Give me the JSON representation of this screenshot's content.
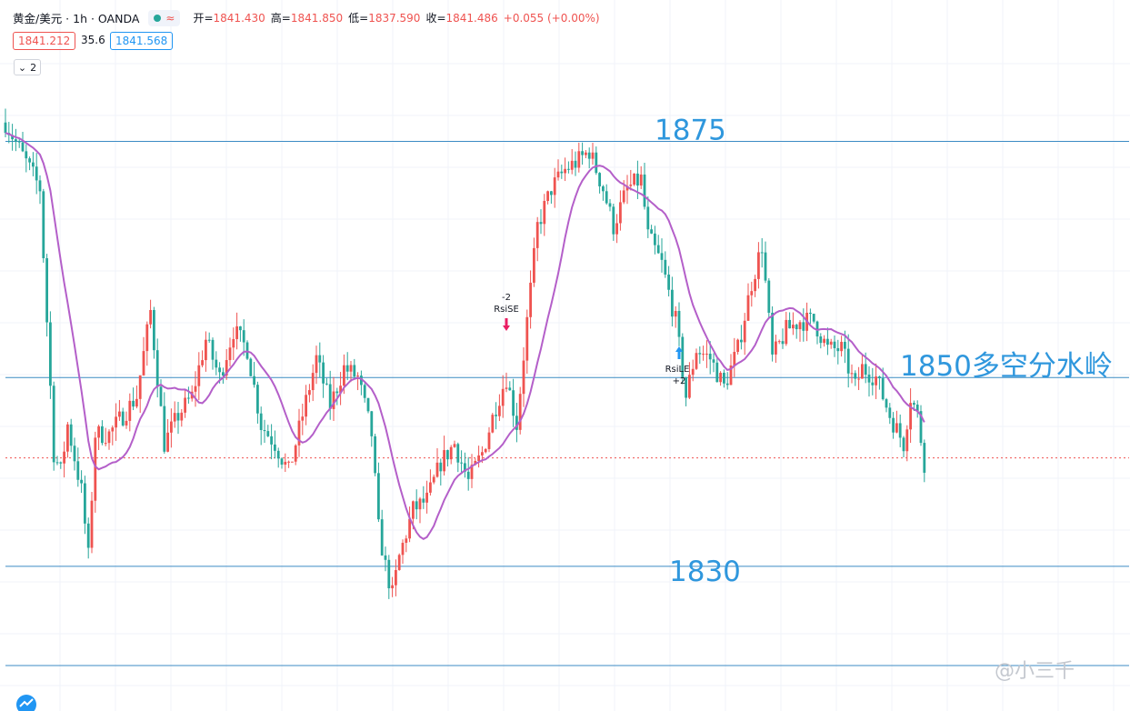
{
  "legend": {
    "symbol": "黄金/美元 · 1h · OANDA",
    "open_label": "开=",
    "open": "1841.430",
    "high_label": "高=",
    "high": "1841.850",
    "low_label": "低=",
    "low": "1837.590",
    "close_label": "收=",
    "close": "1841.486",
    "change": "+0.055 (+0.00%)",
    "wave_icon": "≈"
  },
  "quote": {
    "bid": "1841.212",
    "spread": "35.6",
    "ask": "1841.568"
  },
  "collapse_button": {
    "count": "2"
  },
  "watermark": "@小三千",
  "colors": {
    "up": "#ef5350",
    "down": "#26a69a",
    "ma": "#b45fc9",
    "hline": "#3c8bc4",
    "annotation": "#2f97dd",
    "last_price_line": "#ef5350",
    "grid": "#f0f3fa"
  },
  "chart_data": {
    "type": "candlestick",
    "instrument": "黄金/美元",
    "timeframe": "1h",
    "ylim": [
      1819.5,
      1881.5
    ],
    "last_price": 1841.486,
    "annotations": [
      {
        "text": "1875",
        "price": 1875
      },
      {
        "text": "1850多空分水岭",
        "price": 1850
      },
      {
        "text": "1830",
        "price": 1830
      }
    ],
    "levels": [
      1875,
      1850,
      1830,
      1819.5
    ],
    "signals": [
      {
        "label": "-2",
        "name": "RsiSE",
        "direction": "sell",
        "bar_index": 145
      },
      {
        "label": "RsiLE",
        "qty": "+2",
        "direction": "buy",
        "bar_index": 195
      }
    ],
    "close_path": [
      [
        0,
        1877
      ],
      [
        10,
        1870
      ],
      [
        12,
        1856
      ],
      [
        14,
        1842
      ],
      [
        16,
        1840
      ],
      [
        18,
        1845
      ],
      [
        22,
        1838
      ],
      [
        24,
        1831
      ],
      [
        26,
        1844
      ],
      [
        30,
        1844
      ],
      [
        34,
        1846
      ],
      [
        38,
        1848
      ],
      [
        42,
        1857
      ],
      [
        46,
        1843
      ],
      [
        50,
        1846
      ],
      [
        54,
        1848
      ],
      [
        58,
        1854
      ],
      [
        62,
        1850
      ],
      [
        66,
        1855
      ],
      [
        70,
        1853
      ],
      [
        74,
        1845
      ],
      [
        78,
        1843
      ],
      [
        82,
        1840
      ],
      [
        86,
        1846
      ],
      [
        90,
        1852
      ],
      [
        94,
        1847
      ],
      [
        98,
        1851
      ],
      [
        102,
        1850
      ],
      [
        106,
        1844
      ],
      [
        108,
        1834
      ],
      [
        110,
        1830
      ],
      [
        112,
        1827
      ],
      [
        114,
        1831
      ],
      [
        118,
        1836
      ],
      [
        122,
        1837
      ],
      [
        126,
        1841
      ],
      [
        130,
        1843
      ],
      [
        134,
        1839
      ],
      [
        138,
        1842
      ],
      [
        142,
        1847
      ],
      [
        145,
        1850
      ],
      [
        148,
        1845
      ],
      [
        151,
        1856
      ],
      [
        154,
        1866
      ],
      [
        158,
        1870
      ],
      [
        162,
        1872
      ],
      [
        166,
        1873
      ],
      [
        169,
        1874
      ],
      [
        173,
        1870
      ],
      [
        176,
        1866
      ],
      [
        180,
        1870
      ],
      [
        184,
        1871
      ],
      [
        186,
        1865
      ],
      [
        190,
        1862
      ],
      [
        194,
        1856
      ],
      [
        197,
        1848
      ],
      [
        200,
        1853
      ],
      [
        204,
        1852
      ],
      [
        208,
        1849
      ],
      [
        212,
        1853
      ],
      [
        216,
        1860
      ],
      [
        219,
        1864
      ],
      [
        222,
        1852
      ],
      [
        226,
        1855
      ],
      [
        230,
        1856
      ],
      [
        234,
        1856
      ],
      [
        238,
        1853
      ],
      [
        242,
        1853
      ],
      [
        246,
        1849
      ],
      [
        248,
        1851
      ],
      [
        252,
        1850
      ],
      [
        256,
        1846
      ],
      [
        260,
        1843
      ],
      [
        262,
        1848
      ],
      [
        264,
        1846
      ],
      [
        266,
        1841
      ]
    ]
  }
}
